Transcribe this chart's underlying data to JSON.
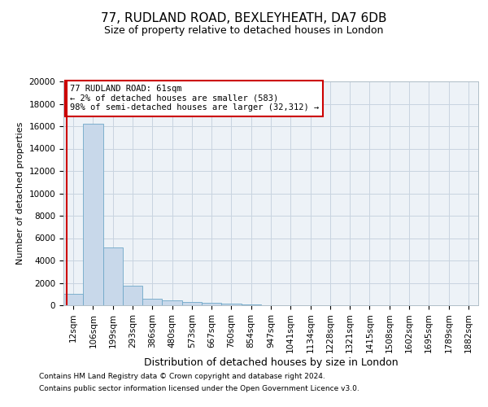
{
  "title1": "77, RUDLAND ROAD, BEXLEYHEATH, DA7 6DB",
  "title2": "Size of property relative to detached houses in London",
  "xlabel": "Distribution of detached houses by size in London",
  "ylabel": "Number of detached properties",
  "annotation_line1": "77 RUDLAND ROAD: 61sqm",
  "annotation_line2": "← 2% of detached houses are smaller (583)",
  "annotation_line3": "98% of semi-detached houses are larger (32,312) →",
  "footnote1": "Contains HM Land Registry data © Crown copyright and database right 2024.",
  "footnote2": "Contains public sector information licensed under the Open Government Licence v3.0.",
  "bin_labels": [
    "12sqm",
    "106sqm",
    "199sqm",
    "293sqm",
    "386sqm",
    "480sqm",
    "573sqm",
    "667sqm",
    "760sqm",
    "854sqm",
    "947sqm",
    "1041sqm",
    "1134sqm",
    "1228sqm",
    "1321sqm",
    "1415sqm",
    "1508sqm",
    "1602sqm",
    "1695sqm",
    "1789sqm",
    "1882sqm"
  ],
  "bar_values": [
    1050,
    16200,
    5200,
    1750,
    600,
    430,
    270,
    200,
    150,
    90,
    0,
    0,
    0,
    0,
    0,
    0,
    0,
    0,
    0,
    0,
    0
  ],
  "bar_color": "#c8d8ea",
  "bar_edge_color": "#6fa8c8",
  "annotation_box_color": "#cc0000",
  "vline_color": "#cc0000",
  "ylim": [
    0,
    20000
  ],
  "yticks": [
    0,
    2000,
    4000,
    6000,
    8000,
    10000,
    12000,
    14000,
    16000,
    18000,
    20000
  ],
  "grid_color": "#c8d4e0",
  "bg_color": "#edf2f7",
  "title1_fontsize": 11,
  "title2_fontsize": 9,
  "ylabel_fontsize": 8,
  "xlabel_fontsize": 9,
  "tick_fontsize": 7.5,
  "annotation_fontsize": 7.5,
  "footnote_fontsize": 6.5
}
